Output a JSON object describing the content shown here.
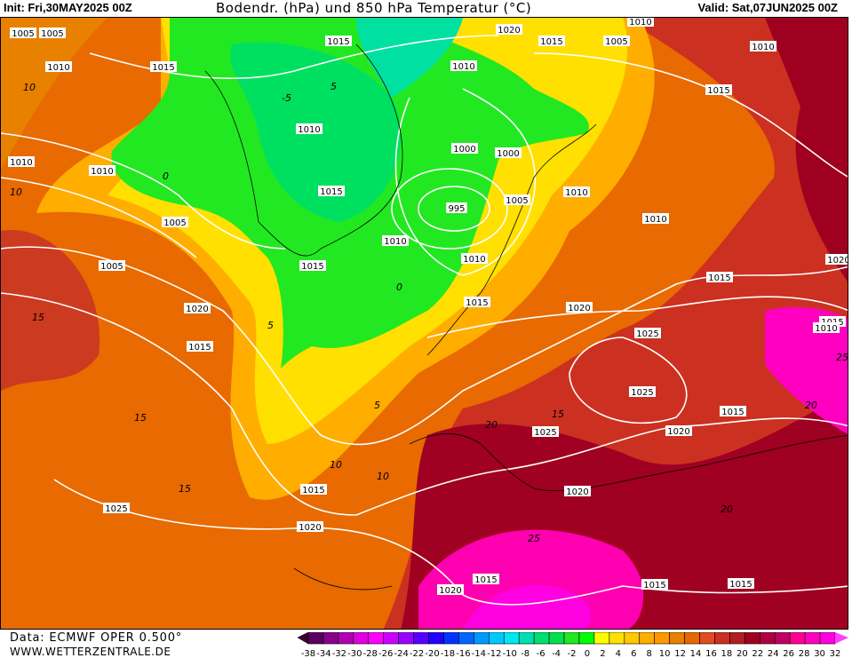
{
  "header": {
    "init": "Init: Fri,30MAY2025 00Z",
    "title": "Bodendr. (hPa) und 850 hPa Temperatur (°C)",
    "valid": "Valid: Sat,07JUN2025 00Z"
  },
  "footer": {
    "data_source": "Data: ECMWF OPER 0.500°",
    "website": "WWW.WETTERZENTRALE.DE"
  },
  "colorbar": {
    "unit": "°C",
    "labels": [
      "-38",
      "-34",
      "-32",
      "-30",
      "-28",
      "-26",
      "-24",
      "-22",
      "-20",
      "-18",
      "-16",
      "-14",
      "-12",
      "-10",
      "-8",
      "-6",
      "-4",
      "-2",
      "0",
      "2",
      "4",
      "6",
      "8",
      "10",
      "12",
      "14",
      "16",
      "18",
      "20",
      "22",
      "24",
      "26",
      "28",
      "30",
      "32"
    ],
    "colors": [
      "#5a0060",
      "#880088",
      "#b000b0",
      "#e000e0",
      "#ff00ff",
      "#cc00ff",
      "#9900ff",
      "#5500ff",
      "#2200ff",
      "#0033ff",
      "#0066ff",
      "#0099ff",
      "#00c8ff",
      "#00e8f0",
      "#00e0b0",
      "#00e070",
      "#00e050",
      "#22e822",
      "#00ff00",
      "#ffff00",
      "#ffe000",
      "#ffc800",
      "#ffae00",
      "#ff9800",
      "#e88000",
      "#e86800",
      "#e04c20",
      "#cc3020",
      "#b01e22",
      "#a00020",
      "#b00040",
      "#c00060",
      "#ff0090",
      "#ff00c0",
      "#ff00e0"
    ],
    "arrow_low_color": "#3a0030",
    "arrow_high_color": "#ff40ff"
  },
  "map": {
    "isobar_labels": [
      "1005",
      "1010",
      "1015",
      "1020",
      "1015",
      "1005",
      "1010",
      "1015",
      "1010",
      "1010",
      "1005",
      "1000",
      "1015",
      "995",
      "1000",
      "1005",
      "1010",
      "1015",
      "1020",
      "1015",
      "1005",
      "1010",
      "1010",
      "1010",
      "1010",
      "1015",
      "1010",
      "1015",
      "1020",
      "1020",
      "1015",
      "1015",
      "1025",
      "1025",
      "1015",
      "1020",
      "1025",
      "1020",
      "1015",
      "1020",
      "1025",
      "1015",
      "1020",
      "1015",
      "1015",
      "1010",
      "1005",
      "1010"
    ],
    "temperature_labels": [
      "10",
      "5",
      "0",
      "-5",
      "10",
      "15",
      "10",
      "5",
      "15",
      "20",
      "25",
      "20",
      "15",
      "10",
      "5",
      "0",
      "15",
      "20",
      "25"
    ]
  }
}
